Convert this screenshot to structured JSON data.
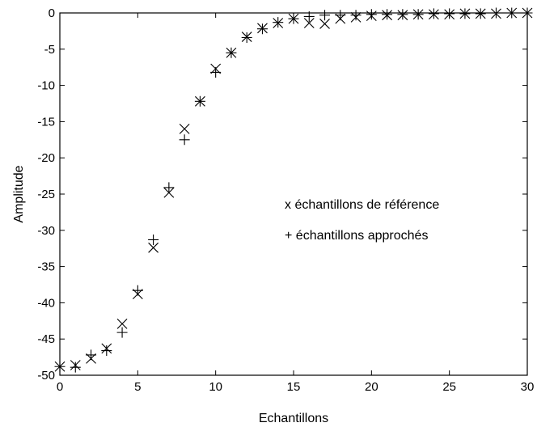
{
  "chart_data": {
    "type": "scatter",
    "title": "",
    "xlabel": "Echantillons",
    "ylabel": "Amplitude",
    "xlim": [
      0,
      30
    ],
    "ylim": [
      -50,
      0
    ],
    "xticks": [
      0,
      5,
      10,
      15,
      20,
      25,
      30
    ],
    "yticks": [
      0,
      -5,
      -10,
      -15,
      -20,
      -25,
      -30,
      -35,
      -40,
      -45,
      -50
    ],
    "grid": false,
    "legend_placement": "center-right",
    "series": [
      {
        "name": "échantillons de référence",
        "marker": "x",
        "legend_text": "x échantillons de référence",
        "x": [
          0,
          1,
          2,
          3,
          4,
          5,
          6,
          7,
          8,
          9,
          10,
          11,
          12,
          13,
          14,
          15,
          16,
          17,
          18,
          19,
          20,
          21,
          22,
          23,
          24,
          25,
          26,
          27,
          28,
          29,
          30
        ],
        "y": [
          -48.8,
          -48.6,
          -47.7,
          -46.3,
          -42.9,
          -38.8,
          -32.4,
          -24.8,
          -16.0,
          -12.2,
          -7.7,
          -5.5,
          -3.3,
          -2.1,
          -1.4,
          -0.8,
          -1.4,
          -1.5,
          -0.8,
          -0.6,
          -0.4,
          -0.3,
          -0.3,
          -0.2,
          -0.2,
          -0.2,
          -0.1,
          -0.1,
          -0.1,
          0.0,
          0.0
        ]
      },
      {
        "name": "échantillons approchés",
        "marker": "+",
        "legend_text": "+ échantillons approchés",
        "x": [
          0,
          1,
          2,
          3,
          4,
          5,
          6,
          7,
          8,
          9,
          10,
          11,
          12,
          13,
          14,
          15,
          16,
          17,
          18,
          19,
          20,
          21,
          22,
          23,
          24,
          25,
          26,
          27,
          28,
          29,
          30
        ],
        "y": [
          -48.8,
          -48.9,
          -47.2,
          -46.6,
          -44.1,
          -38.3,
          -31.3,
          -24.1,
          -17.5,
          -12.2,
          -8.2,
          -5.5,
          -3.4,
          -2.2,
          -1.3,
          -0.8,
          -0.5,
          -0.3,
          -0.3,
          -0.3,
          -0.2,
          -0.2,
          -0.2,
          -0.2,
          -0.1,
          -0.1,
          -0.1,
          -0.1,
          0.0,
          0.0,
          0.0
        ]
      }
    ]
  }
}
